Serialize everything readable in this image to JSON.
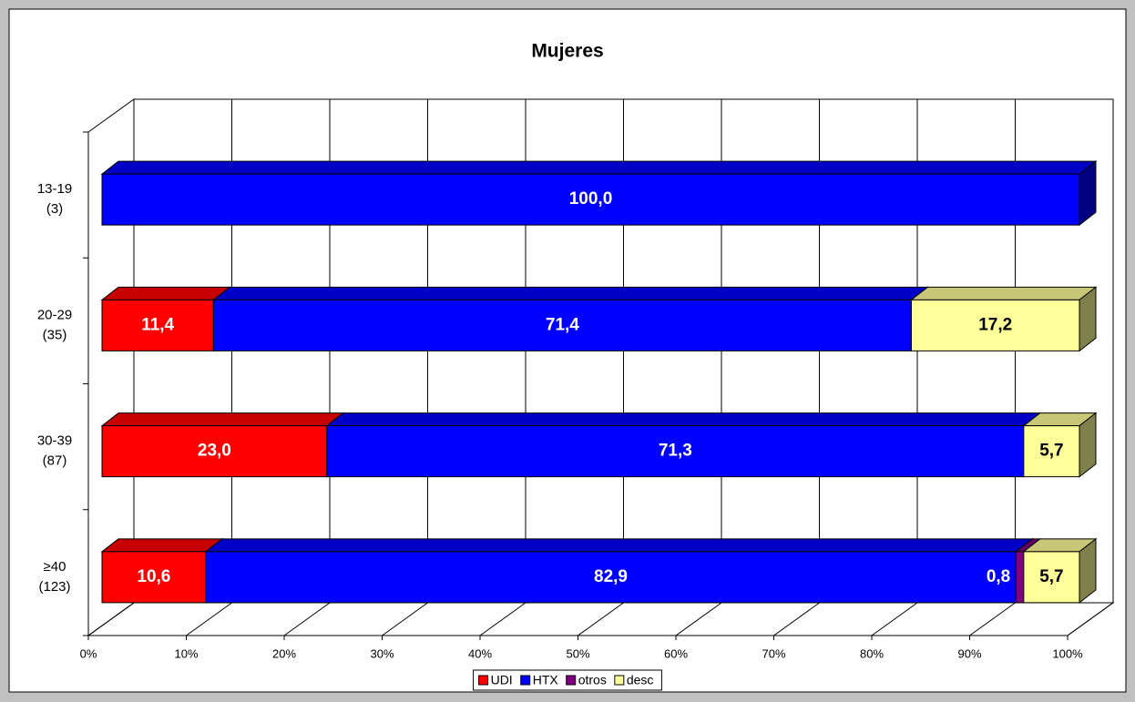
{
  "chart_data": {
    "type": "bar3d_stacked_horizontal",
    "title": "Mujeres",
    "categories": [
      "13-19",
      "20-29",
      "30-39",
      "≥40"
    ],
    "category_notes": [
      "(3)",
      "(35)",
      "(87)",
      "(123)"
    ],
    "series": [
      {
        "name": "UDI",
        "color": "#ff0000",
        "label_color": "#ffffff",
        "values": [
          null,
          11.4,
          23.0,
          10.6
        ],
        "value_labels": [
          null,
          "11,4",
          "23,0",
          "10,6"
        ]
      },
      {
        "name": "HTX",
        "color": "#0000ff",
        "label_color": "#ffffff",
        "values": [
          100.0,
          71.4,
          71.3,
          82.9
        ],
        "value_labels": [
          "100,0",
          "71,4",
          "71,3",
          "82,9"
        ]
      },
      {
        "name": "otros",
        "color": "#800080",
        "label_color": "#ffffff",
        "values": [
          null,
          null,
          null,
          0.8
        ],
        "value_labels": [
          null,
          null,
          null,
          "0,8"
        ]
      },
      {
        "name": "desc",
        "color": "#ffff99",
        "label_color": "#000000",
        "values": [
          null,
          17.2,
          5.7,
          5.7
        ],
        "value_labels": [
          null,
          "17,2",
          "5,7",
          "5,7"
        ]
      }
    ],
    "xlim": [
      0,
      100
    ],
    "xticks": [
      {
        "value": 0,
        "label": "0%"
      },
      {
        "value": 10,
        "label": "10%"
      },
      {
        "value": 20,
        "label": "20%"
      },
      {
        "value": 30,
        "label": "30%"
      },
      {
        "value": 40,
        "label": "40%"
      },
      {
        "value": 50,
        "label": "50%"
      },
      {
        "value": 60,
        "label": "60%"
      },
      {
        "value": 70,
        "label": "70%"
      },
      {
        "value": 80,
        "label": "80%"
      },
      {
        "value": 90,
        "label": "90%"
      },
      {
        "value": 100,
        "label": "100%"
      }
    ],
    "grid": true,
    "legend": "bottom"
  }
}
